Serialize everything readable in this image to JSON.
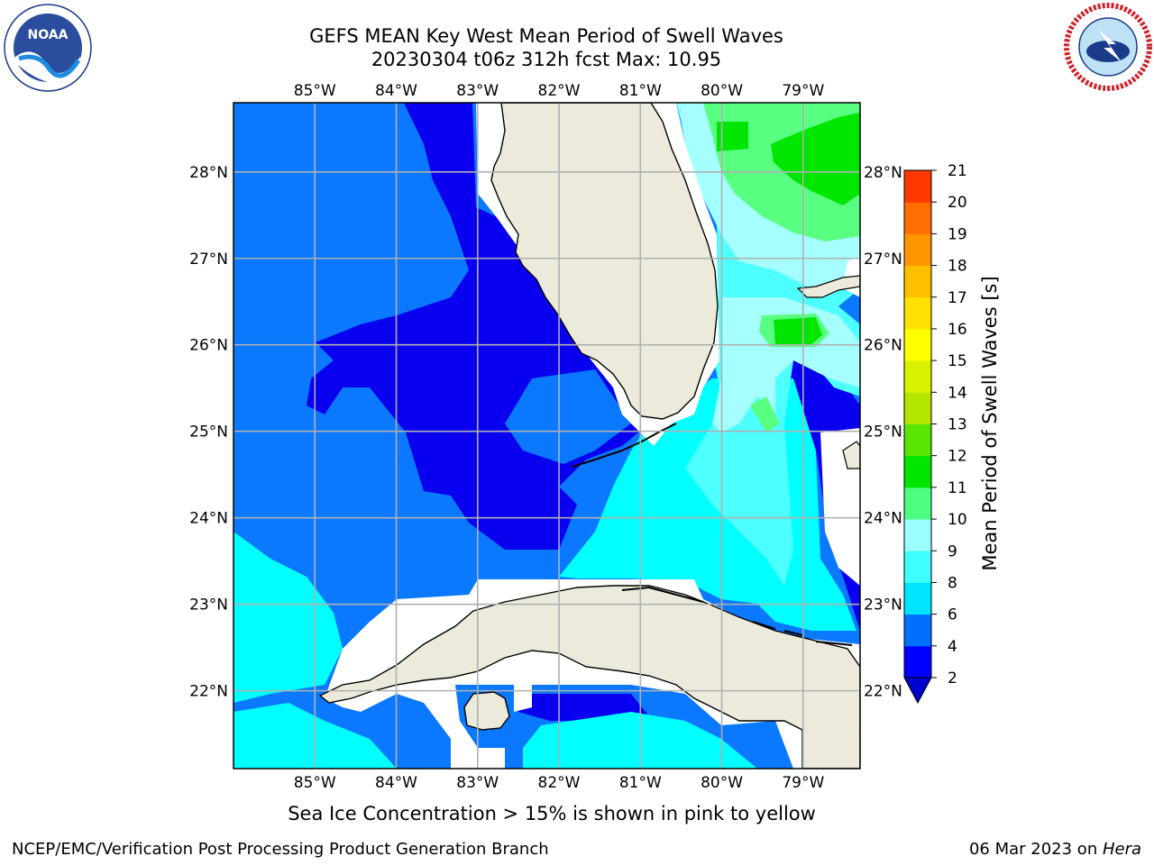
{
  "title": {
    "line1": "GEFS MEAN Key West Mean Period of Swell Waves",
    "line2": "20230304 t06z 312h fcst   Max: 10.95"
  },
  "logos": {
    "noaa_text": "NOAA",
    "noaa_ring": "NATIONAL OCEANIC AND ATMOSPHERIC ADMINISTRATION · U.S. DEPARTMENT OF COMMERCE",
    "nws_ring": "NATIONAL WEATHER SERVICE"
  },
  "map": {
    "lon_labels": [
      "85°W",
      "84°W",
      "83°W",
      "82°W",
      "81°W",
      "80°W",
      "79°W"
    ],
    "lat_labels": [
      "28°N",
      "27°N",
      "26°N",
      "25°N",
      "24°N",
      "23°N",
      "22°N"
    ],
    "extent": {
      "lon_min": -86,
      "lon_max": -78.3,
      "lat_min": 21.1,
      "lat_max": 28.8
    }
  },
  "colorbar": {
    "label": "Mean Period of Swell Waves [s]",
    "ticks": [
      "2",
      "4",
      "6",
      "8",
      "9",
      "10",
      "11",
      "12",
      "13",
      "14",
      "15",
      "16",
      "17",
      "18",
      "19",
      "20",
      "21"
    ],
    "colors": [
      "#0000ff",
      "#0070ff",
      "#00e5ff",
      "#40ffff",
      "#9bffff",
      "#4dff80",
      "#00e600",
      "#59e600",
      "#b3e600",
      "#d9f200",
      "#ffff00",
      "#ffe100",
      "#ffbf00",
      "#ff9600",
      "#ff6e00",
      "#ff3700",
      "#ff0000"
    ],
    "under_color": "#0000cc"
  },
  "footer": {
    "ice_note": "Sea Ice Concentration > 15% is shown in pink to yellow",
    "credit": "NCEP/EMC/Verification Post Processing Product Generation Branch",
    "date": "06 Mar 2023 on ",
    "host": "Hera"
  },
  "colors": {
    "land": "#ecebdb",
    "blue_deep": "#0a00f0",
    "blue": "#0a78ff",
    "cyan": "#00ffff",
    "cyan_light": "#4dffff",
    "aqua": "#a6ffff",
    "green_light": "#59ff80",
    "green": "#00e600",
    "grid": "#b0b0b0"
  }
}
